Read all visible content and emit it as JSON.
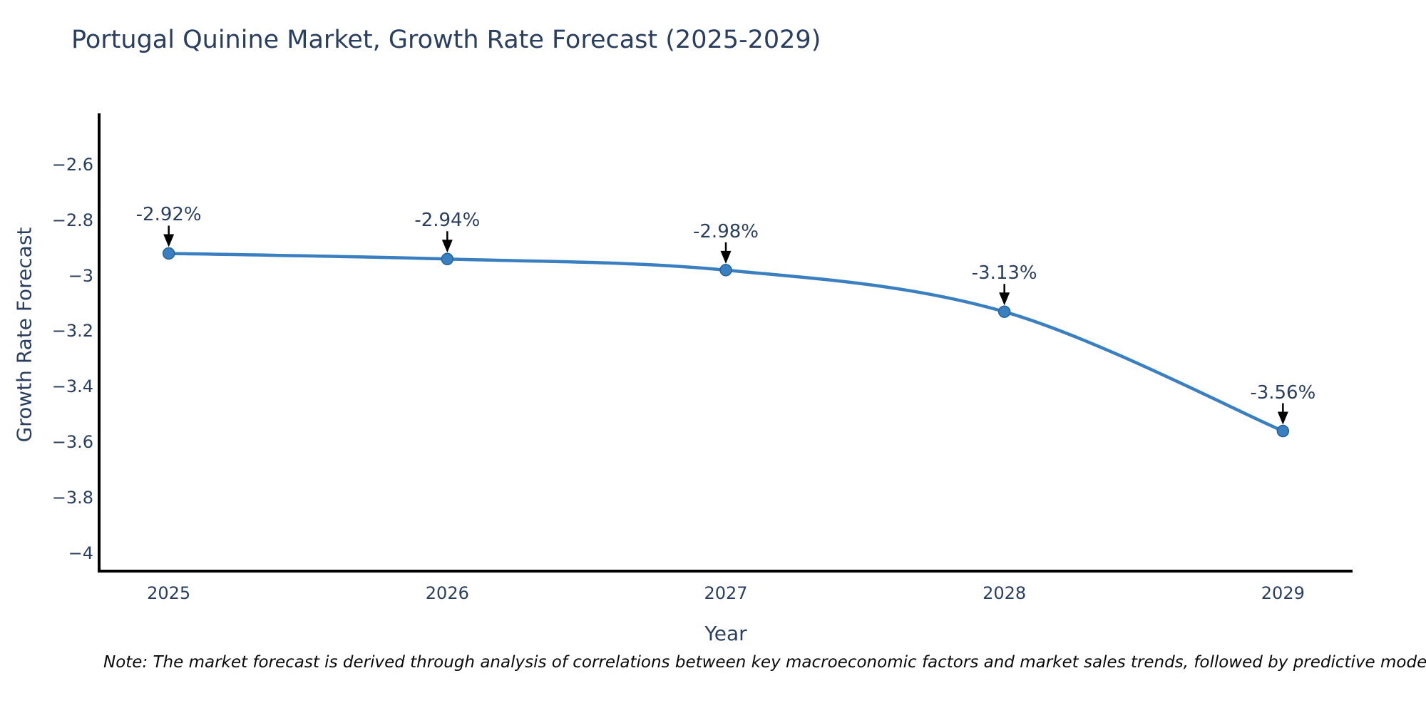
{
  "title": "Portugal Quinine Market, Growth Rate Forecast (2025-2029)",
  "note": "Note: The market forecast is derived through analysis of correlations between key macroeconomic factors and market sales trends, followed by predictive modeling to project future sa",
  "chart_data": {
    "type": "line",
    "line_shape": "spline",
    "title": "Portugal Quinine Market, Growth Rate Forecast (2025-2029)",
    "xlabel": "Year",
    "ylabel": "Growth Rate Forecast",
    "x": [
      2025,
      2026,
      2027,
      2028,
      2029
    ],
    "y": [
      -2.92,
      -2.94,
      -2.98,
      -3.13,
      -3.56
    ],
    "point_labels": [
      "-2.92%",
      "-2.94%",
      "-2.98%",
      "-3.13%",
      "-3.56%"
    ],
    "x_tick_labels": [
      "2025",
      "2026",
      "2027",
      "2028",
      "2029"
    ],
    "x_tick_values": [
      2025,
      2026,
      2027,
      2028,
      2029
    ],
    "y_tick_labels": [
      "−2.6",
      "−2.8",
      "−3",
      "−3.2",
      "−3.4",
      "−3.6",
      "−3.8",
      "−4"
    ],
    "y_tick_values": [
      -2.6,
      -2.8,
      -3.0,
      -3.2,
      -3.4,
      -3.6,
      -3.8,
      -4.0
    ],
    "xlim": [
      2024.75,
      2029.25
    ],
    "ylim": [
      -4.065,
      -2.415
    ],
    "grid": false,
    "legend": "none",
    "annotation_arrows": true,
    "colors": {
      "line": "#3a80c0",
      "marker_fill": "#3a80c0",
      "marker_edge": "#24639c",
      "axis_line": "#000000",
      "chart_text": "#2a3f5f",
      "arrow": "#000000",
      "note_text": "#0a0a0a",
      "background": "#ffffff"
    }
  }
}
